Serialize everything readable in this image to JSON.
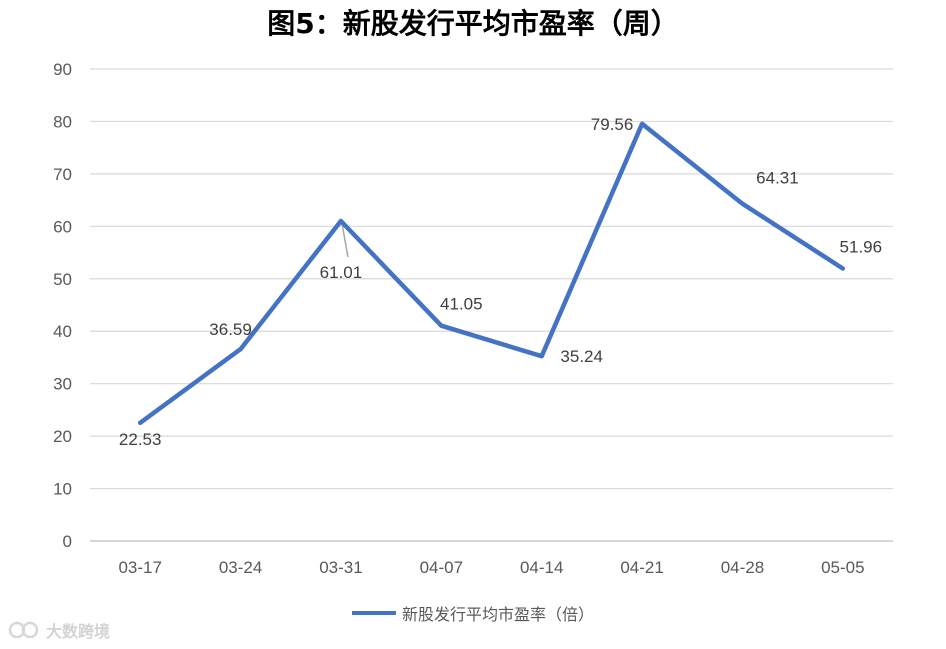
{
  "chart_data": {
    "type": "line",
    "title": "图5：新股发行平均市盈率（周）",
    "categories": [
      "03-17",
      "03-24",
      "03-31",
      "04-07",
      "04-14",
      "04-21",
      "04-28",
      "05-05"
    ],
    "series": [
      {
        "name": "新股发行平均市盈率（倍）",
        "values": [
          22.53,
          36.59,
          61.01,
          41.05,
          35.24,
          79.56,
          64.31,
          51.96
        ],
        "color": "#4472C4"
      }
    ],
    "data_labels": [
      "22.53",
      "36.59",
      "61.01",
      "41.05",
      "35.24",
      "79.56",
      "64.31",
      "51.96"
    ],
    "ylim": [
      0,
      90
    ],
    "yticks": [
      0,
      10,
      20,
      30,
      40,
      50,
      60,
      70,
      80,
      90
    ],
    "grid": true,
    "legend_position": "bottom",
    "xlabel": "",
    "ylabel": ""
  },
  "watermark": {
    "text": "大数跨境",
    "icon": "logo-icon"
  }
}
